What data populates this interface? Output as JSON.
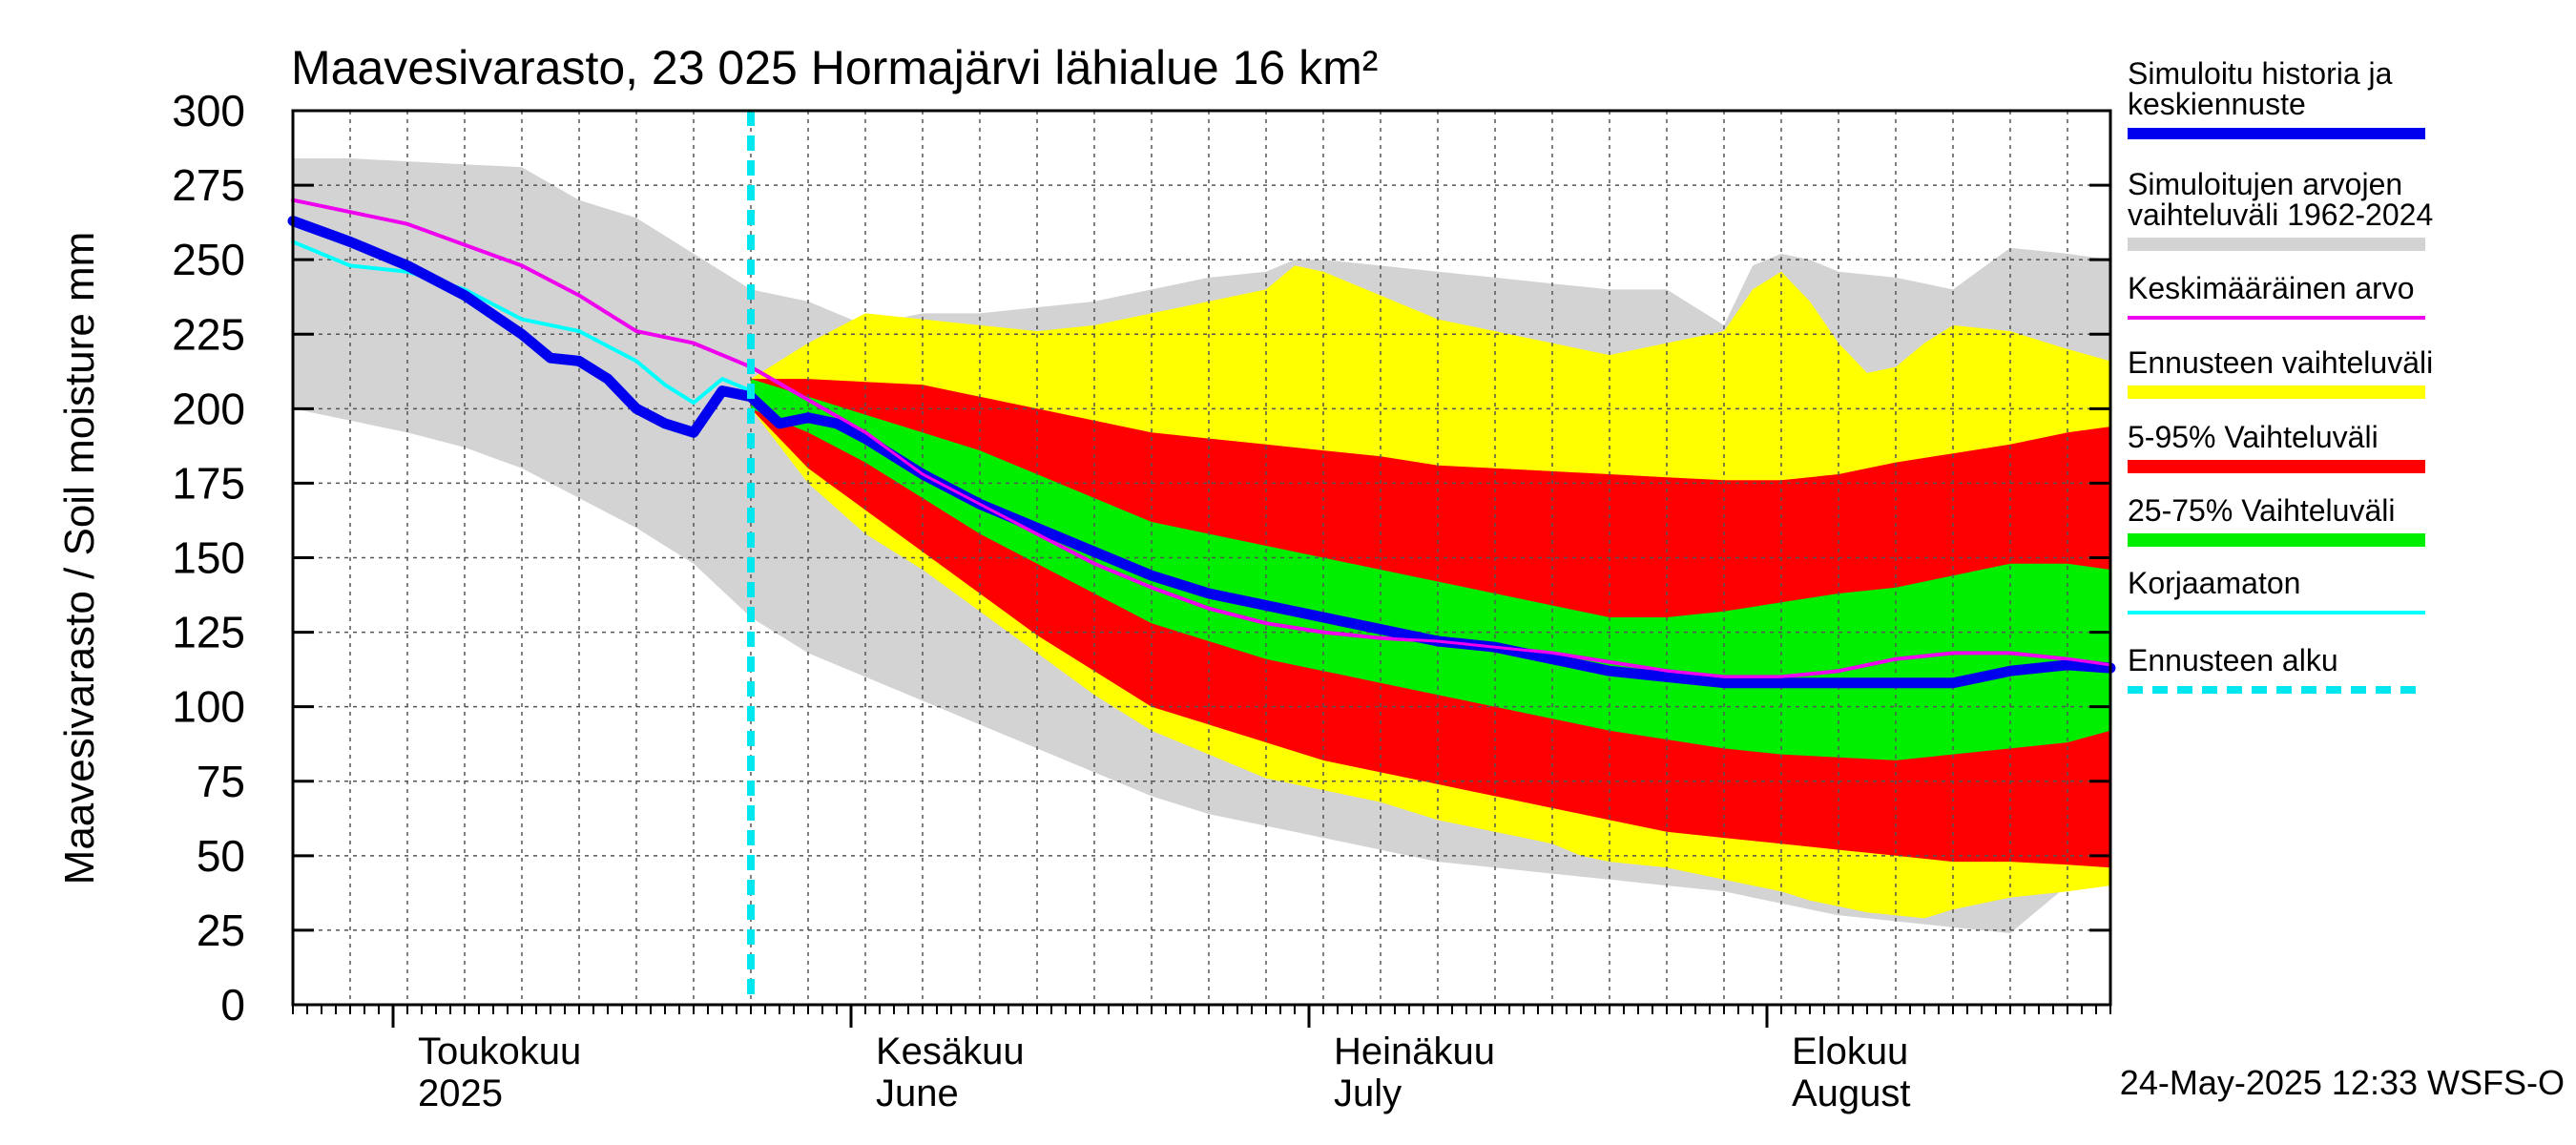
{
  "chart_data": {
    "type": "area",
    "title": "Maavesivarasto, 23 025 Hormajärvi lähialue 16 km²",
    "ylabel": "Maavesivarasto / Soil moisture   mm",
    "ylim": [
      0,
      300
    ],
    "yticks": [
      0,
      25,
      50,
      75,
      100,
      125,
      150,
      175,
      200,
      225,
      250,
      275,
      300
    ],
    "x_range_days": [
      0,
      127
    ],
    "month_ticks": [
      {
        "day": 7,
        "line1": "Toukokuu",
        "line2": "2025"
      },
      {
        "day": 39,
        "line1": "Kesäkuu",
        "line2": "June"
      },
      {
        "day": 71,
        "line1": "Heinäkuu",
        "line2": "July"
      },
      {
        "day": 103,
        "line1": "Elokuu",
        "line2": "August"
      }
    ],
    "forecast_start_day": 32,
    "footer": "24-May-2025 12:33 WSFS-O",
    "legend": [
      {
        "label_lines": [
          "Simuloitu historia ja",
          "keskiennuste"
        ],
        "color": "#0000ee",
        "style": "thick"
      },
      {
        "label_lines": [
          "Simuloitujen arvojen",
          "vaihteluväli 1962-2024"
        ],
        "color": "#d3d3d3",
        "style": "band"
      },
      {
        "label_lines": [
          "Keskimääräinen arvo"
        ],
        "color": "#ee00ee",
        "style": "thin"
      },
      {
        "label_lines": [
          "Ennusteen vaihteluväli"
        ],
        "color": "#ffff00",
        "style": "band"
      },
      {
        "label_lines": [
          "5-95% Vaihteluväli"
        ],
        "color": "#ff0000",
        "style": "band"
      },
      {
        "label_lines": [
          "25-75% Vaihteluväli"
        ],
        "color": "#00ee00",
        "style": "band"
      },
      {
        "label_lines": [
          "Korjaamaton"
        ],
        "color": "#00ffff",
        "style": "thin"
      },
      {
        "label_lines": [
          "Ennusteen alku"
        ],
        "color": "#00e5ee",
        "style": "dashed"
      }
    ],
    "bands": {
      "historical_range": {
        "x": [
          0,
          4,
          8,
          12,
          16,
          20,
          24,
          28,
          32,
          36,
          40,
          44,
          48,
          52,
          56,
          60,
          64,
          68,
          70,
          72,
          76,
          80,
          84,
          88,
          92,
          96,
          100,
          101,
          102,
          104,
          106,
          108,
          112,
          116,
          120,
          124,
          127
        ],
        "lo": [
          200,
          196,
          192,
          187,
          180,
          170,
          160,
          148,
          130,
          118,
          110,
          102,
          94,
          86,
          78,
          70,
          64,
          60,
          58,
          56,
          52,
          48,
          46,
          44,
          42,
          40,
          38,
          37,
          36,
          34,
          32,
          30,
          28,
          26,
          24,
          40,
          42
        ],
        "hi": [
          284,
          284,
          283,
          282,
          281,
          270,
          264,
          252,
          240,
          236,
          228,
          232,
          232,
          234,
          236,
          240,
          244,
          246,
          250,
          250,
          248,
          246,
          244,
          242,
          240,
          240,
          228,
          238,
          248,
          252,
          250,
          246,
          244,
          240,
          254,
          252,
          250
        ]
      },
      "forecast_range": {
        "x": [
          32,
          36,
          40,
          44,
          48,
          52,
          56,
          60,
          64,
          68,
          70,
          72,
          76,
          80,
          84,
          88,
          90,
          92,
          96,
          100,
          102,
          104,
          106,
          108,
          110,
          112,
          114,
          116,
          120,
          124,
          127
        ],
        "lo": [
          200,
          175,
          158,
          146,
          132,
          118,
          104,
          92,
          84,
          76,
          74,
          72,
          68,
          62,
          58,
          54,
          50,
          48,
          46,
          42,
          40,
          38,
          35,
          33,
          31,
          30,
          29,
          32,
          36,
          38,
          40
        ],
        "hi": [
          210,
          222,
          232,
          230,
          228,
          226,
          228,
          232,
          236,
          240,
          248,
          246,
          238,
          230,
          226,
          222,
          220,
          218,
          222,
          226,
          240,
          246,
          236,
          222,
          212,
          214,
          222,
          228,
          226,
          220,
          216
        ]
      },
      "p5_95": {
        "x": [
          32,
          36,
          40,
          44,
          48,
          52,
          56,
          60,
          64,
          68,
          72,
          76,
          80,
          84,
          88,
          92,
          96,
          100,
          104,
          108,
          112,
          116,
          120,
          124,
          127
        ],
        "lo": [
          200,
          180,
          166,
          152,
          138,
          124,
          112,
          100,
          94,
          88,
          82,
          78,
          74,
          70,
          66,
          62,
          58,
          56,
          54,
          52,
          50,
          48,
          48,
          47,
          46
        ],
        "hi": [
          210,
          210,
          209,
          208,
          204,
          200,
          196,
          192,
          190,
          188,
          186,
          184,
          181,
          180,
          179,
          178,
          177,
          176,
          176,
          178,
          182,
          185,
          188,
          192,
          194
        ]
      },
      "p25_75": {
        "x": [
          32,
          36,
          40,
          44,
          48,
          52,
          56,
          60,
          64,
          68,
          72,
          76,
          80,
          84,
          88,
          92,
          96,
          100,
          104,
          108,
          112,
          116,
          120,
          124,
          127
        ],
        "lo": [
          200,
          192,
          182,
          170,
          158,
          148,
          138,
          128,
          122,
          116,
          112,
          108,
          104,
          100,
          96,
          92,
          89,
          86,
          84,
          83,
          82,
          84,
          86,
          88,
          92
        ],
        "hi": [
          210,
          204,
          198,
          192,
          186,
          178,
          170,
          162,
          158,
          154,
          150,
          146,
          142,
          138,
          134,
          130,
          130,
          132,
          135,
          138,
          140,
          144,
          148,
          148,
          146
        ]
      }
    },
    "series": [
      {
        "name": "Simuloitu historia ja keskiennuste",
        "x": [
          0,
          4,
          8,
          12,
          16,
          18,
          20,
          22,
          24,
          26,
          28,
          30,
          32,
          34,
          36,
          38,
          40,
          44,
          48,
          52,
          56,
          60,
          64,
          68,
          72,
          76,
          80,
          84,
          88,
          92,
          96,
          100,
          104,
          108,
          112,
          116,
          120,
          124,
          127
        ],
        "values": [
          263,
          256,
          248,
          238,
          225,
          217,
          216,
          210,
          200,
          195,
          192,
          206,
          204,
          195,
          197,
          195,
          190,
          178,
          168,
          160,
          152,
          144,
          138,
          134,
          130,
          126,
          122,
          120,
          116,
          112,
          110,
          108,
          108,
          108,
          108,
          108,
          112,
          114,
          113
        ]
      },
      {
        "name": "Keskimääräinen arvo",
        "x": [
          0,
          4,
          8,
          12,
          16,
          20,
          24,
          28,
          30,
          32,
          36,
          40,
          44,
          48,
          52,
          56,
          60,
          64,
          68,
          72,
          76,
          80,
          84,
          88,
          92,
          96,
          100,
          104,
          108,
          112,
          116,
          120,
          124,
          127
        ],
        "values": [
          270,
          266,
          262,
          255,
          248,
          238,
          226,
          222,
          218,
          214,
          203,
          192,
          178,
          168,
          158,
          148,
          140,
          133,
          128,
          125,
          123,
          122,
          120,
          118,
          115,
          112,
          110,
          110,
          112,
          116,
          118,
          118,
          116,
          114
        ]
      },
      {
        "name": "Korjaamaton",
        "x": [
          0,
          4,
          8,
          12,
          16,
          20,
          24,
          26,
          28,
          30,
          32
        ],
        "values": [
          256,
          248,
          246,
          240,
          230,
          226,
          216,
          208,
          202,
          210,
          206
        ]
      }
    ]
  }
}
